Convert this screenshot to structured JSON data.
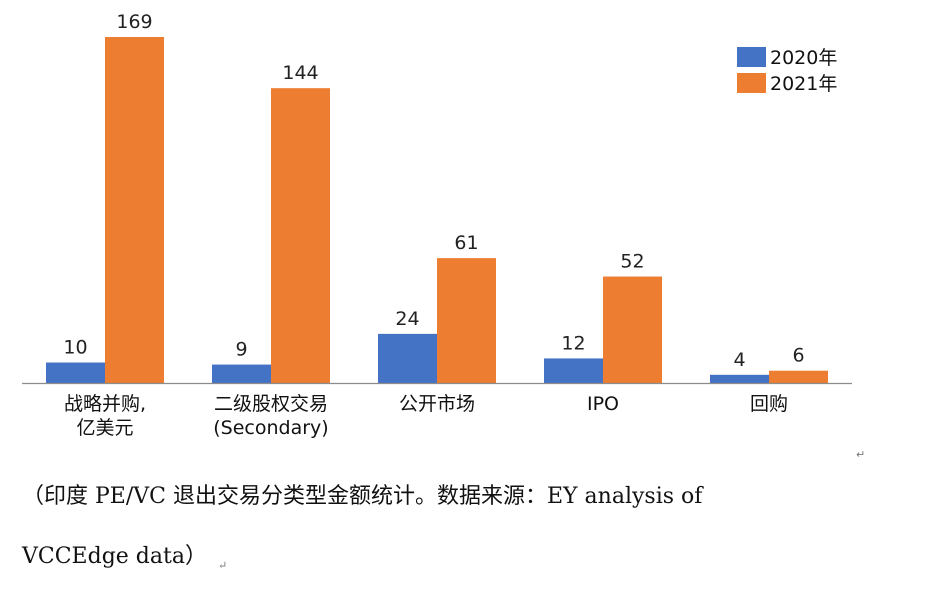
{
  "chart_data": {
    "type": "bar",
    "categories": [
      [
        "战略并购,",
        "亿美元"
      ],
      [
        "二级股权交易",
        "(Secondary)"
      ],
      [
        "公开市场"
      ],
      [
        "IPO"
      ],
      [
        "回购"
      ]
    ],
    "series": [
      {
        "name": "2020年",
        "color": "#4472c4",
        "values": [
          10,
          9,
          24,
          12,
          4
        ]
      },
      {
        "name": "2021年",
        "color": "#ed7d31",
        "values": [
          169,
          144,
          61,
          52,
          6
        ]
      }
    ],
    "ylim": [
      0,
      169
    ],
    "grid": false,
    "legend": "top-right"
  },
  "caption": {
    "line1": "（印度 PE/VC 退出交易分类型金额统计。数据来源：EY analysis of",
    "line2": "VCCEdge data）"
  },
  "para_mark": "↵"
}
